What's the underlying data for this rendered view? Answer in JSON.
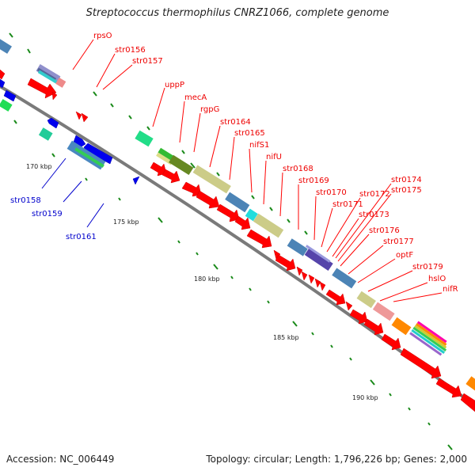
{
  "title": "Streptococcus thermophilus CNRZ1066, complete genome",
  "accession_text": "Accession: NC_006449",
  "summary_text": "Topology: circular; Length: 1,796,226 bp; Genes: 2,000",
  "kbp_labels": [
    "170 kbp",
    "175 kbp",
    "180 kbp",
    "185 kbp",
    "190 kbp"
  ],
  "forward_genes": [
    "rpsO",
    "str0156",
    "str0157",
    "uppP",
    "mecA",
    "rgpG",
    "str0164",
    "str0165",
    "nifS1",
    "nifU",
    "str0168",
    "str0169",
    "str0170",
    "str0171",
    "str0172",
    "str0173",
    "str0174",
    "str0175",
    "str0176",
    "str0177",
    "optF",
    "str0179",
    "hslO",
    "nifR"
  ],
  "reverse_genes": [
    "str0158",
    "str0159",
    "str0161"
  ],
  "colors": {
    "forward": "#ff0000",
    "reverse": "#0000cc",
    "backbone": "#808080",
    "tick": "#1a8a1a"
  }
}
